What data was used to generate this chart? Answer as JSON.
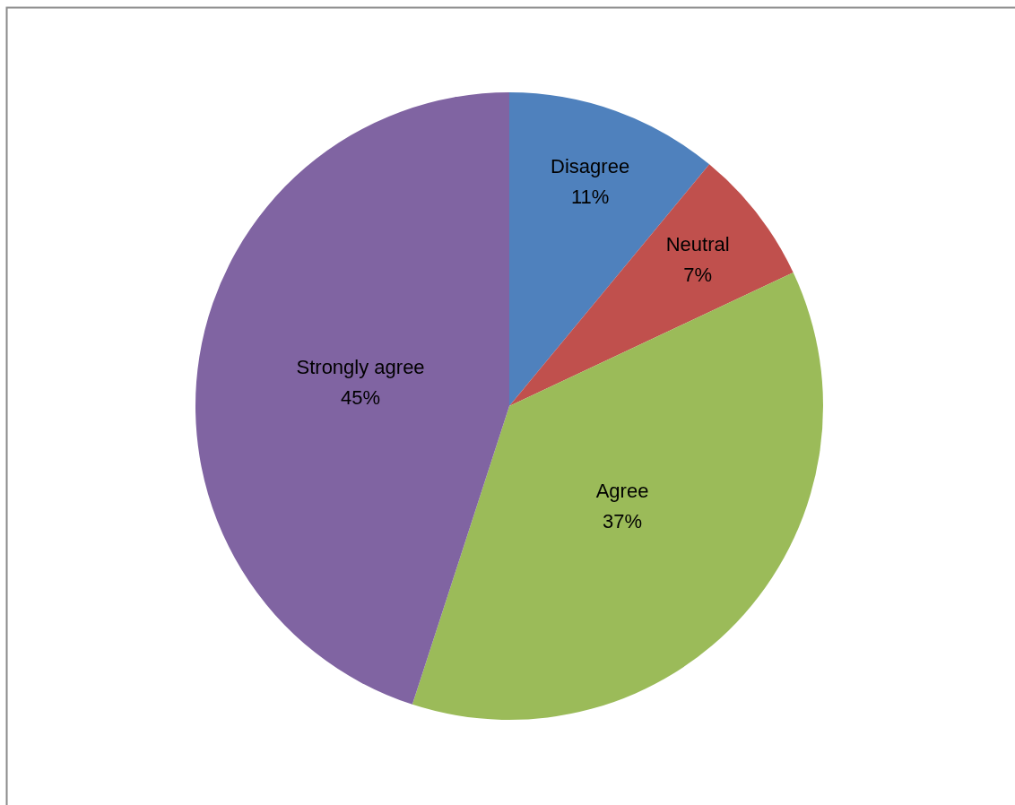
{
  "chart_data": {
    "type": "pie",
    "categories": [
      "Disagree",
      "Neutral",
      "Agree",
      "Strongly agree"
    ],
    "values": [
      11,
      7,
      37,
      45
    ],
    "value_labels": [
      "11%",
      "7%",
      "37%",
      "45%"
    ],
    "colors": [
      "#4f81bd",
      "#c0504d",
      "#9bbb59",
      "#8064a2"
    ]
  }
}
